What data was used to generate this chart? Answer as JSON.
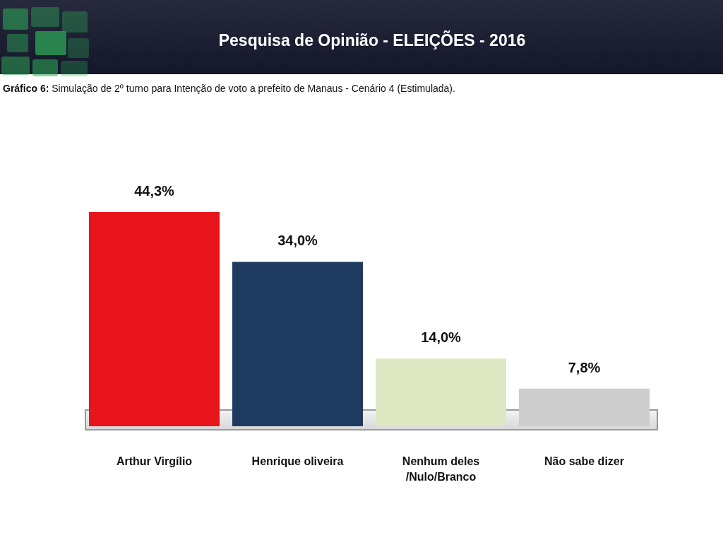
{
  "chart_data": {
    "type": "bar",
    "title": "Pesquisa de Opinião - ELEIÇÕES - 2016",
    "subtitle": "Gráfico 6: Simulação de 2º turno para Intenção de voto a prefeito de Manaus - Cenário 4 (Estimulada).",
    "categories": [
      "Arthur Virgílio",
      "Henrique oliveira",
      "Nenhum deles /Nulo/Branco",
      "Não sabe dizer"
    ],
    "values": [
      44.3,
      34.0,
      14.0,
      7.8
    ],
    "colors": [
      "#e8141c",
      "#1f3a5f",
      "#dde8c2",
      "#cdcdcd"
    ],
    "value_labels": [
      "44,3%",
      "34,0%",
      "14,0%",
      "7,8%"
    ],
    "tick_labels": "x"
  }
}
